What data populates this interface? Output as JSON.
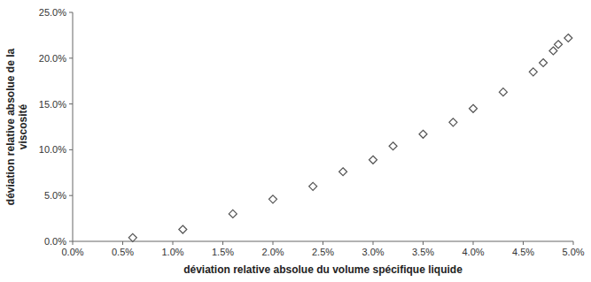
{
  "chart_data": {
    "type": "scatter",
    "xlabel": "déviation relative absolue du volume spécifique liquide",
    "ylabel": "déviation relative absolue de la\nviscosité",
    "x": [
      0.006,
      0.011,
      0.016,
      0.02,
      0.024,
      0.027,
      0.03,
      0.032,
      0.035,
      0.038,
      0.04,
      0.043,
      0.046,
      0.047,
      0.048,
      0.0485,
      0.0495
    ],
    "values": [
      0.004,
      0.013,
      0.03,
      0.046,
      0.06,
      0.076,
      0.089,
      0.104,
      0.117,
      0.13,
      0.145,
      0.163,
      0.185,
      0.195,
      0.208,
      0.215,
      0.222
    ],
    "color": "#555555",
    "marker": "diamond",
    "grid": false,
    "xlim": [
      0.0,
      0.05
    ],
    "ylim": [
      0.0,
      0.25
    ],
    "xticks": [
      {
        "value": 0.0,
        "label": "0.0%"
      },
      {
        "value": 0.005,
        "label": "0.5%"
      },
      {
        "value": 0.01,
        "label": "1.0%"
      },
      {
        "value": 0.015,
        "label": "1.5%"
      },
      {
        "value": 0.02,
        "label": "2.0%"
      },
      {
        "value": 0.025,
        "label": "2.5%"
      },
      {
        "value": 0.03,
        "label": "3.0%"
      },
      {
        "value": 0.035,
        "label": "3.5%"
      },
      {
        "value": 0.04,
        "label": "4.0%"
      },
      {
        "value": 0.045,
        "label": "4.5%"
      },
      {
        "value": 0.05,
        "label": "5.0%"
      }
    ],
    "yticks": [
      {
        "value": 0.0,
        "label": "0.0%"
      },
      {
        "value": 0.05,
        "label": "5.0%"
      },
      {
        "value": 0.1,
        "label": "10.0%"
      },
      {
        "value": 0.15,
        "label": "15.0%"
      },
      {
        "value": 0.2,
        "label": "20.0%"
      },
      {
        "value": 0.25,
        "label": "25.0%"
      }
    ]
  }
}
